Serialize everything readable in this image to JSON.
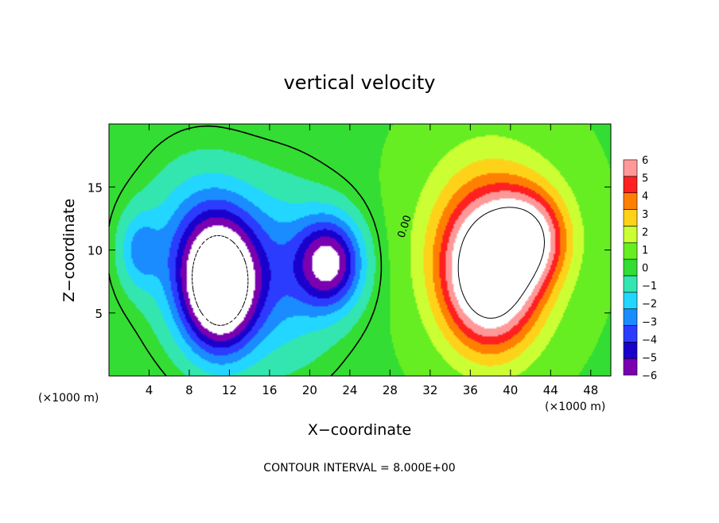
{
  "chart_data": {
    "type": "heatmap",
    "title": "vertical velocity",
    "xlabel": "X−coordinate",
    "ylabel": "Z−coordinate",
    "x_unit_left": "(×1000 m)",
    "x_unit_right": "(×1000 m)",
    "footer": "CONTOUR INTERVAL = 8.000E+00",
    "contour_label": "0.00",
    "xlim": [
      0,
      50
    ],
    "ylim": [
      0,
      20
    ],
    "x_ticks": [
      4,
      8,
      12,
      16,
      20,
      24,
      28,
      32,
      36,
      40,
      44,
      48
    ],
    "y_ticks": [
      5,
      10,
      15
    ],
    "colorbar": {
      "min": -6,
      "max": 6,
      "ticks": [
        "6",
        "5",
        "4",
        "3",
        "2",
        "1",
        "0",
        "−1",
        "−2",
        "−3",
        "−4",
        "−5",
        "−6"
      ]
    },
    "features": [
      {
        "kind": "downdraft",
        "x": 11,
        "z": 7,
        "sx": 3.6,
        "sz": 5.0,
        "amp": -9
      },
      {
        "kind": "downdraft",
        "x": 9,
        "z": 10,
        "sx": 5.5,
        "sz": 6.5,
        "amp": -3.5
      },
      {
        "kind": "downdraft",
        "x": 22,
        "z": 9,
        "sx": 3.2,
        "sz": 3.5,
        "amp": -6.5
      },
      {
        "kind": "downdraft",
        "x": 17,
        "z": 8,
        "sx": 6,
        "sz": 7,
        "amp": -3
      },
      {
        "kind": "downdraft",
        "x": 3,
        "z": 10,
        "sx": 2,
        "sz": 3,
        "amp": -2.5
      },
      {
        "kind": "updraft",
        "x": 38,
        "z": 8,
        "sx": 4.5,
        "sz": 5.5,
        "amp": 9
      },
      {
        "kind": "updraft",
        "x": 42,
        "z": 11,
        "sx": 3.5,
        "sz": 3.5,
        "amp": 5
      },
      {
        "kind": "updraft",
        "x": 38,
        "z": 11,
        "sx": 7,
        "sz": 7.5,
        "amp": 3
      }
    ]
  }
}
